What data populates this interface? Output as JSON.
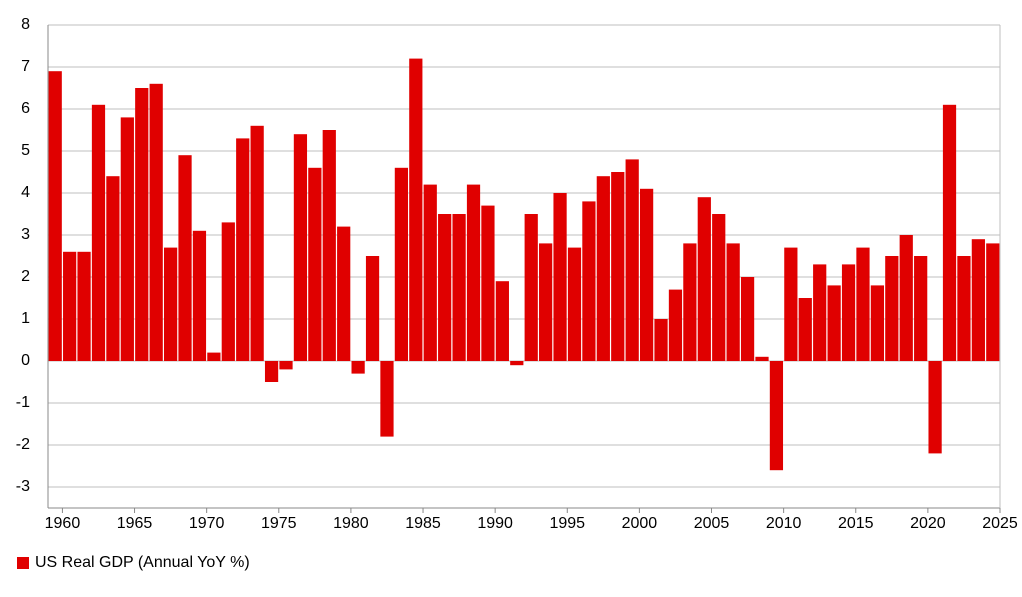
{
  "chart_data": {
    "type": "bar",
    "x": [
      1959,
      1960,
      1961,
      1962,
      1963,
      1964,
      1965,
      1966,
      1967,
      1968,
      1969,
      1970,
      1971,
      1972,
      1973,
      1974,
      1975,
      1976,
      1977,
      1978,
      1979,
      1980,
      1981,
      1982,
      1983,
      1984,
      1985,
      1986,
      1987,
      1988,
      1989,
      1990,
      1991,
      1992,
      1993,
      1994,
      1995,
      1996,
      1997,
      1998,
      1999,
      2000,
      2001,
      2002,
      2003,
      2004,
      2005,
      2006,
      2007,
      2008,
      2009,
      2010,
      2011,
      2012,
      2013,
      2014,
      2015,
      2016,
      2017,
      2018,
      2019,
      2020,
      2021,
      2022,
      2023,
      2024
    ],
    "series": [
      {
        "name": "US Real GDP (Annual YoY %)",
        "color": "#e00000",
        "values": [
          6.9,
          2.6,
          2.6,
          6.1,
          4.4,
          5.8,
          6.5,
          6.6,
          2.7,
          4.9,
          3.1,
          0.2,
          3.3,
          5.3,
          5.6,
          -0.5,
          -0.2,
          5.4,
          4.6,
          5.5,
          3.2,
          -0.3,
          2.5,
          -1.8,
          4.6,
          7.2,
          4.2,
          3.5,
          3.5,
          4.2,
          3.7,
          1.9,
          -0.1,
          3.5,
          2.8,
          4.0,
          2.7,
          3.8,
          4.4,
          4.5,
          4.8,
          4.1,
          1.0,
          1.7,
          2.8,
          3.9,
          3.5,
          2.8,
          2.0,
          0.1,
          -2.6,
          2.7,
          1.5,
          2.3,
          1.8,
          2.3,
          2.7,
          1.8,
          2.5,
          3.0,
          2.5,
          -2.2,
          6.1,
          2.5,
          2.9,
          2.8
        ]
      }
    ],
    "xlim": [
      1959,
      2025
    ],
    "xticks": [
      1960,
      1965,
      1970,
      1975,
      1980,
      1985,
      1990,
      1995,
      2000,
      2005,
      2010,
      2015,
      2020,
      2025
    ],
    "ylim": [
      -3.5,
      8
    ],
    "yticks": [
      -3,
      -2,
      -1,
      0,
      1,
      2,
      3,
      4,
      5,
      6,
      7,
      8
    ],
    "grid": true,
    "legend": "bottom-left"
  }
}
